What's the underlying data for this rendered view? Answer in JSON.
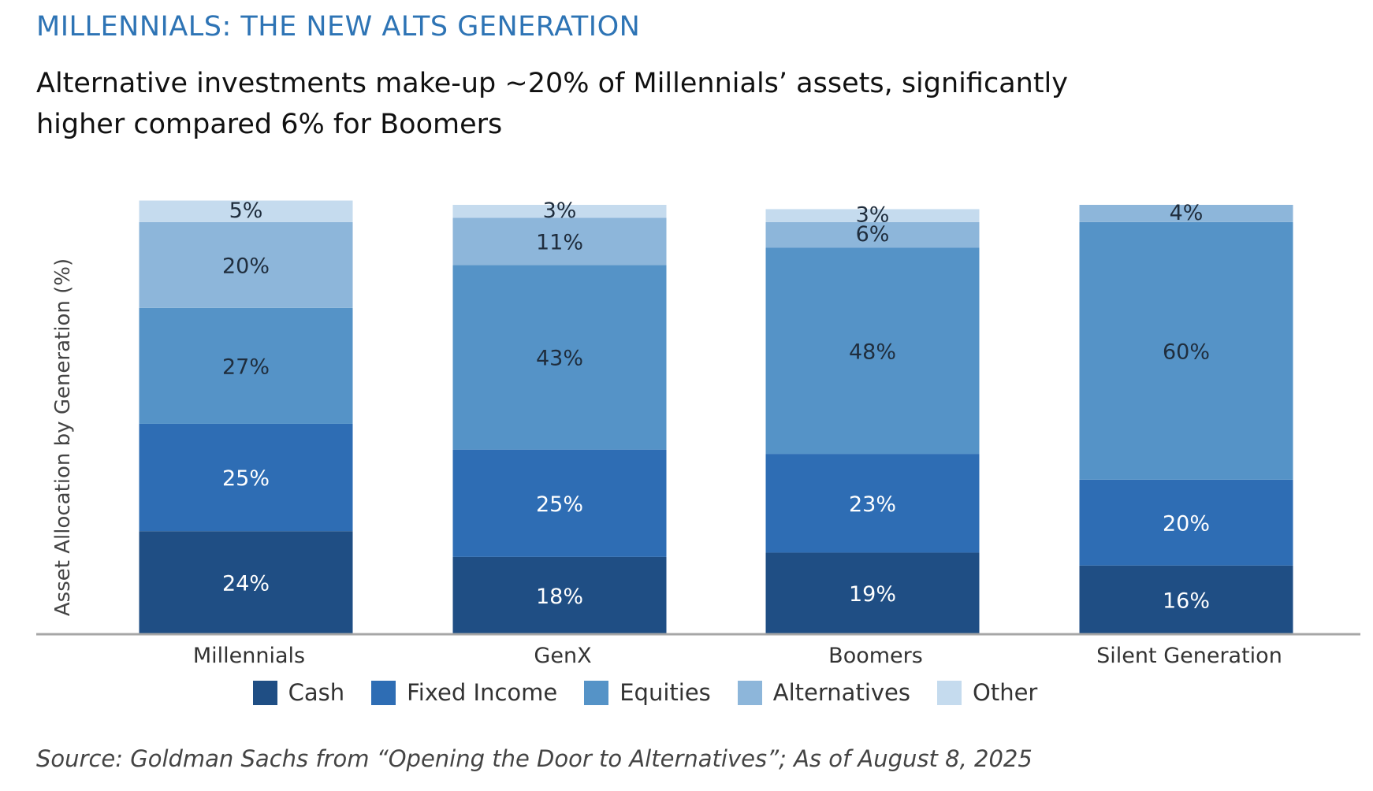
{
  "kicker": "MILLENNIALS: THE NEW ALTS GENERATION",
  "headline": "Alternative investments make-up ~20% of Millennials’ assets, significantly higher compared 6% for Boomers",
  "source": "Source: Goldman Sachs from “Opening the Door to Alternatives”; As of August 8, 2025",
  "chart_data": {
    "type": "bar",
    "stacked": true,
    "ylabel": "Asset Allocation by Generation (%)",
    "ylim": [
      0,
      100
    ],
    "grid": false,
    "legend_position": "bottom",
    "categories": [
      "Millennials",
      "GenX",
      "Boomers",
      "Silent Generation"
    ],
    "series": [
      {
        "name": "Cash",
        "color": "#1f4e84",
        "label_color": "#ffffff",
        "values": [
          24,
          18,
          19,
          16
        ],
        "labels": [
          "24%",
          "18%",
          "19%",
          "16%"
        ]
      },
      {
        "name": "Fixed Income",
        "color": "#2e6db4",
        "label_color": "#ffffff",
        "values": [
          25,
          25,
          23,
          20
        ],
        "labels": [
          "25%",
          "25%",
          "23%",
          "20%"
        ]
      },
      {
        "name": "Equities",
        "color": "#5593c7",
        "label_color": "#1f2d3d",
        "values": [
          27,
          43,
          48,
          60
        ],
        "labels": [
          "27%",
          "43%",
          "48%",
          "60%"
        ]
      },
      {
        "name": "Alternatives",
        "color": "#8db6da",
        "label_color": "#1f2d3d",
        "values": [
          20,
          11,
          6,
          4
        ],
        "labels": [
          "20%",
          "11%",
          "6%",
          "4%"
        ]
      },
      {
        "name": "Other",
        "color": "#c5dbee",
        "label_color": "#1f2d3d",
        "values": [
          5,
          3,
          3,
          0
        ],
        "labels": [
          "5%",
          "3%",
          "3%",
          ""
        ]
      }
    ]
  }
}
